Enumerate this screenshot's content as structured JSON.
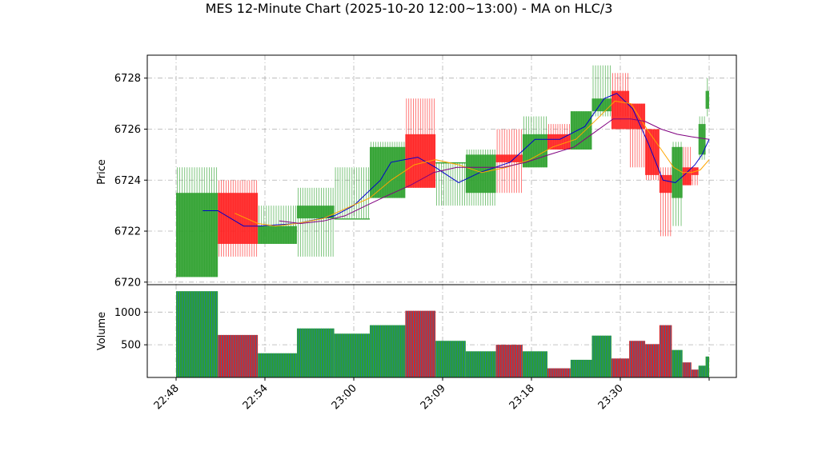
{
  "chart_data": {
    "type": "candlestick",
    "title": "MES 12-Minute Chart (2025-10-20 12:00~13:00) - MA on HLC/3",
    "price_panel": {
      "ylabel": "Price",
      "ylim": [
        6719.9,
        6728.9
      ],
      "y_ticks": [
        6720,
        6722,
        6724,
        6726,
        6728
      ],
      "grid": true
    },
    "volume_panel": {
      "ylabel": "Volume",
      "ylim": [
        0,
        1420
      ],
      "y_ticks": [
        500,
        1000
      ],
      "grid": true
    },
    "x_axis": {
      "ticks": [
        "22:48",
        "22:54",
        "23:00",
        "23:09",
        "23:18",
        "23:30",
        ""
      ],
      "tick_positions": [
        0,
        5,
        10,
        15,
        20,
        25,
        30
      ]
    },
    "colors": {
      "up": "#2ca02c",
      "down": "#ff2020",
      "ma_short": "#0000cc",
      "ma_mid": "#ffa500",
      "ma_long": "#800080",
      "volume_stripe_a": "#1f77b4",
      "volume_stripe_b": "#2ca02c",
      "volume_stripe_c": "#d62728"
    },
    "bars": [
      {
        "x0": 0.0,
        "x1": 2.35,
        "open": 6720.2,
        "high": 6724.5,
        "low": 6720.2,
        "close": 6723.5,
        "volume": 1320
      },
      {
        "x0": 2.35,
        "x1": 4.6,
        "open": 6723.5,
        "high": 6724.0,
        "low": 6721.0,
        "close": 6721.5,
        "volume": 650
      },
      {
        "x0": 4.6,
        "x1": 6.8,
        "open": 6721.5,
        "high": 6723.0,
        "low": 6721.5,
        "close": 6722.2,
        "volume": 370
      },
      {
        "x0": 6.8,
        "x1": 8.9,
        "open": 6722.5,
        "high": 6723.7,
        "low": 6721.0,
        "close": 6723.0,
        "volume": 750
      },
      {
        "x0": 8.9,
        "x1": 10.9,
        "open": 6722.5,
        "high": 6724.5,
        "low": 6722.5,
        "close": 6722.5,
        "volume": 670
      },
      {
        "x0": 10.9,
        "x1": 12.9,
        "open": 6723.3,
        "high": 6725.5,
        "low": 6723.3,
        "close": 6725.3,
        "volume": 800
      },
      {
        "x0": 12.9,
        "x1": 14.6,
        "open": 6725.8,
        "high": 6727.2,
        "low": 6723.7,
        "close": 6723.7,
        "volume": 1020
      },
      {
        "x0": 14.6,
        "x1": 16.3,
        "open": 6724.7,
        "high": 6724.7,
        "low": 6723.0,
        "close": 6724.7,
        "volume": 560
      },
      {
        "x0": 16.3,
        "x1": 18.0,
        "open": 6723.5,
        "high": 6725.2,
        "low": 6723.0,
        "close": 6725.0,
        "volume": 400
      },
      {
        "x0": 18.0,
        "x1": 19.5,
        "open": 6725.0,
        "high": 6726.0,
        "low": 6723.5,
        "close": 6724.7,
        "volume": 500
      },
      {
        "x0": 19.5,
        "x1": 20.9,
        "open": 6724.5,
        "high": 6726.5,
        "low": 6724.5,
        "close": 6725.8,
        "volume": 400
      },
      {
        "x0": 20.9,
        "x1": 22.2,
        "open": 6725.8,
        "high": 6726.2,
        "low": 6725.2,
        "close": 6725.2,
        "volume": 140
      },
      {
        "x0": 22.2,
        "x1": 23.4,
        "open": 6725.2,
        "high": 6726.7,
        "low": 6725.2,
        "close": 6726.7,
        "volume": 270
      },
      {
        "x0": 23.4,
        "x1": 24.5,
        "open": 6726.7,
        "high": 6728.5,
        "low": 6726.5,
        "close": 6727.2,
        "volume": 640
      },
      {
        "x0": 24.5,
        "x1": 25.5,
        "open": 6727.5,
        "high": 6728.2,
        "low": 6726.5,
        "close": 6726.0,
        "volume": 290
      },
      {
        "x0": 25.5,
        "x1": 26.4,
        "open": 6727.0,
        "high": 6727.0,
        "low": 6724.5,
        "close": 6726.0,
        "volume": 560
      },
      {
        "x0": 26.4,
        "x1": 27.2,
        "open": 6726.0,
        "high": 6726.0,
        "low": 6724.0,
        "close": 6724.2,
        "volume": 510
      },
      {
        "x0": 27.2,
        "x1": 27.9,
        "open": 6724.2,
        "high": 6724.5,
        "low": 6721.8,
        "close": 6723.5,
        "volume": 800
      },
      {
        "x0": 27.9,
        "x1": 28.5,
        "open": 6723.3,
        "high": 6725.5,
        "low": 6722.2,
        "close": 6725.3,
        "volume": 420
      },
      {
        "x0": 28.5,
        "x1": 29.0,
        "open": 6724.5,
        "high": 6725.3,
        "low": 6723.8,
        "close": 6723.8,
        "volume": 230
      },
      {
        "x0": 29.0,
        "x1": 29.4,
        "open": 6724.5,
        "high": 6724.5,
        "low": 6723.8,
        "close": 6724.2,
        "volume": 120
      },
      {
        "x0": 29.4,
        "x1": 29.8,
        "open": 6725.0,
        "high": 6726.5,
        "low": 6724.8,
        "close": 6726.2,
        "volume": 180
      },
      {
        "x0": 29.8,
        "x1": 30.0,
        "open": 6726.8,
        "high": 6728.0,
        "low": 6726.5,
        "close": 6727.5,
        "volume": 320
      }
    ],
    "series": [
      {
        "color_key": "ma_short",
        "points": [
          [
            1.5,
            6722.8
          ],
          [
            2.35,
            6722.8
          ],
          [
            3.8,
            6722.2
          ],
          [
            4.6,
            6722.2
          ],
          [
            6.8,
            6722.3
          ],
          [
            8.9,
            6722.6
          ],
          [
            10.0,
            6723.0
          ],
          [
            10.9,
            6723.6
          ],
          [
            11.5,
            6724.0
          ],
          [
            12.1,
            6724.7
          ],
          [
            13.6,
            6724.9
          ],
          [
            14.6,
            6724.5
          ],
          [
            15.9,
            6723.9
          ],
          [
            17.1,
            6724.3
          ],
          [
            18.8,
            6724.7
          ],
          [
            20.2,
            6725.6
          ],
          [
            21.6,
            6725.6
          ],
          [
            23.0,
            6726.1
          ],
          [
            24.1,
            6727.2
          ],
          [
            24.8,
            6727.4
          ],
          [
            25.7,
            6726.8
          ],
          [
            26.6,
            6725.4
          ],
          [
            27.4,
            6724.0
          ],
          [
            28.1,
            6723.9
          ],
          [
            28.6,
            6724.2
          ],
          [
            29.2,
            6724.6
          ],
          [
            29.6,
            6725.0
          ],
          [
            30.0,
            6725.6
          ]
        ]
      },
      {
        "color_key": "ma_mid",
        "points": [
          [
            3.3,
            6722.7
          ],
          [
            4.6,
            6722.3
          ],
          [
            5.6,
            6722.2
          ],
          [
            6.8,
            6722.3
          ],
          [
            8.3,
            6722.5
          ],
          [
            9.6,
            6722.9
          ],
          [
            10.9,
            6723.3
          ],
          [
            12.1,
            6724.0
          ],
          [
            13.4,
            6724.6
          ],
          [
            14.6,
            6724.8
          ],
          [
            15.9,
            6724.6
          ],
          [
            17.2,
            6724.3
          ],
          [
            18.6,
            6724.5
          ],
          [
            19.9,
            6724.8
          ],
          [
            21.2,
            6725.3
          ],
          [
            22.5,
            6725.6
          ],
          [
            23.7,
            6726.4
          ],
          [
            24.7,
            6727.1
          ],
          [
            25.6,
            6727.0
          ],
          [
            26.5,
            6726.0
          ],
          [
            27.3,
            6725.2
          ],
          [
            28.0,
            6724.5
          ],
          [
            28.5,
            6724.3
          ],
          [
            29.0,
            6724.3
          ],
          [
            29.5,
            6724.4
          ],
          [
            30.0,
            6724.8
          ]
        ]
      },
      {
        "color_key": "ma_long",
        "points": [
          [
            5.8,
            6722.4
          ],
          [
            7.0,
            6722.3
          ],
          [
            8.3,
            6722.4
          ],
          [
            9.5,
            6722.6
          ],
          [
            10.7,
            6723.0
          ],
          [
            11.9,
            6723.4
          ],
          [
            13.2,
            6723.8
          ],
          [
            14.5,
            6724.3
          ],
          [
            15.8,
            6724.5
          ],
          [
            17.1,
            6724.5
          ],
          [
            18.4,
            6724.5
          ],
          [
            19.7,
            6724.7
          ],
          [
            21.0,
            6725.0
          ],
          [
            22.4,
            6725.3
          ],
          [
            23.6,
            6725.9
          ],
          [
            24.6,
            6726.4
          ],
          [
            25.6,
            6726.4
          ],
          [
            26.4,
            6726.3
          ],
          [
            27.3,
            6726.0
          ],
          [
            28.2,
            6725.8
          ],
          [
            29.0,
            6725.7
          ],
          [
            30.0,
            6725.6
          ]
        ]
      }
    ]
  }
}
